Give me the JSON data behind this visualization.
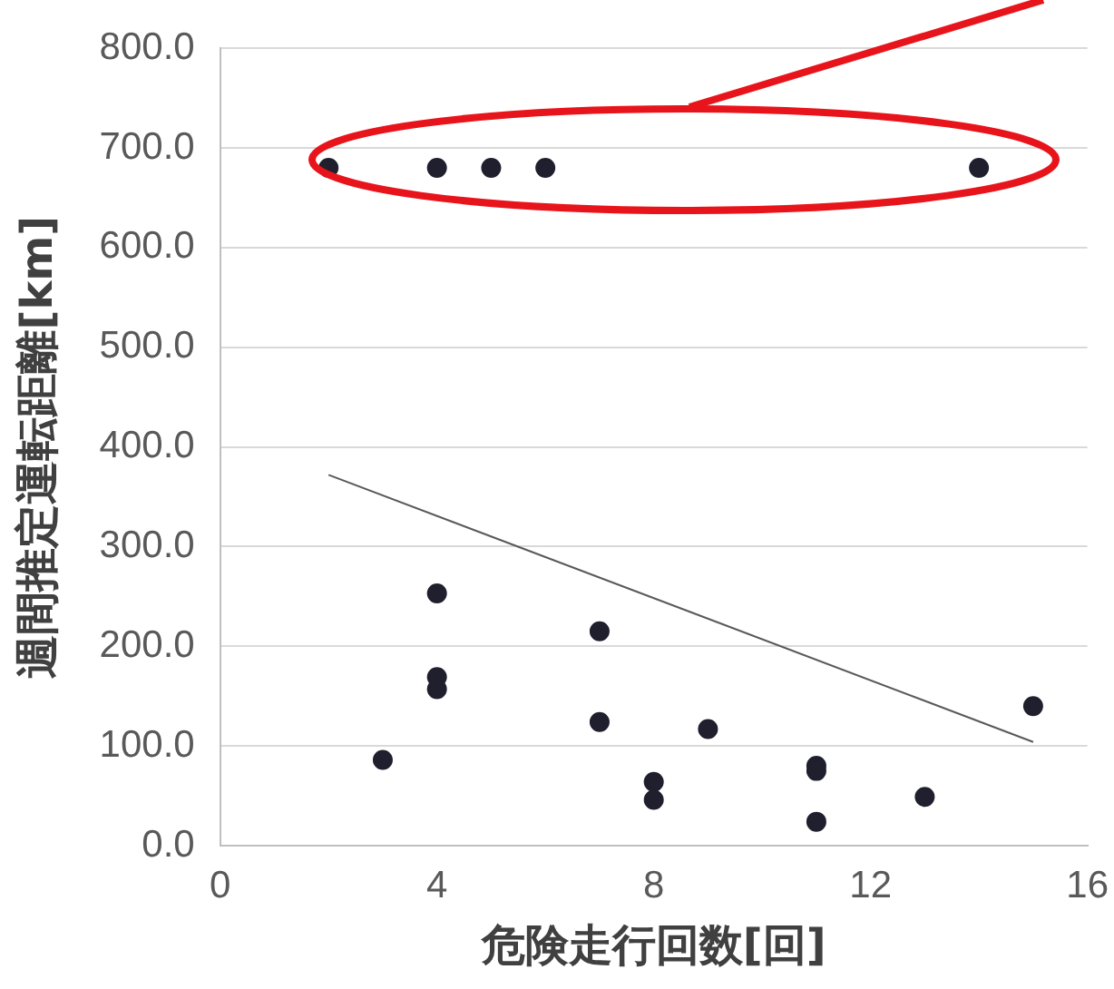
{
  "chart_data": {
    "type": "scatter",
    "xlabel": "危険走行回数[回]",
    "ylabel": "週間推定運転距離[km]",
    "xlim": [
      0,
      16
    ],
    "xticks": [
      0,
      4,
      8,
      12,
      16
    ],
    "ylim": [
      0,
      800
    ],
    "yticks": [
      {
        "value": 0,
        "label": "0.0"
      },
      {
        "value": 100,
        "label": "100.0"
      },
      {
        "value": 200,
        "label": "200.0"
      },
      {
        "value": 300,
        "label": "300.0"
      },
      {
        "value": 400,
        "label": "400.0"
      },
      {
        "value": 500,
        "label": "500.0"
      },
      {
        "value": 600,
        "label": "600.0"
      },
      {
        "value": 700,
        "label": "700.0"
      },
      {
        "value": 800,
        "label": "800.0"
      }
    ],
    "grid": "y",
    "legend": false,
    "marker": "circle",
    "series": [
      {
        "type": "scatter",
        "color": "#1f1f2e",
        "x": [
          2,
          4,
          5,
          6,
          14,
          3,
          4,
          4,
          4,
          7,
          7,
          8,
          8,
          9,
          11,
          11,
          11,
          13,
          15
        ],
        "values": [
          680,
          680,
          680,
          680,
          680,
          86,
          253,
          169,
          157,
          215,
          124,
          64,
          46,
          117,
          80,
          75,
          24,
          49,
          140
        ]
      },
      {
        "type": "line",
        "color": "#595959",
        "marker": "none",
        "line_style": "solid",
        "x": [
          2,
          15
        ],
        "values": [
          372,
          104
        ]
      }
    ]
  }
}
